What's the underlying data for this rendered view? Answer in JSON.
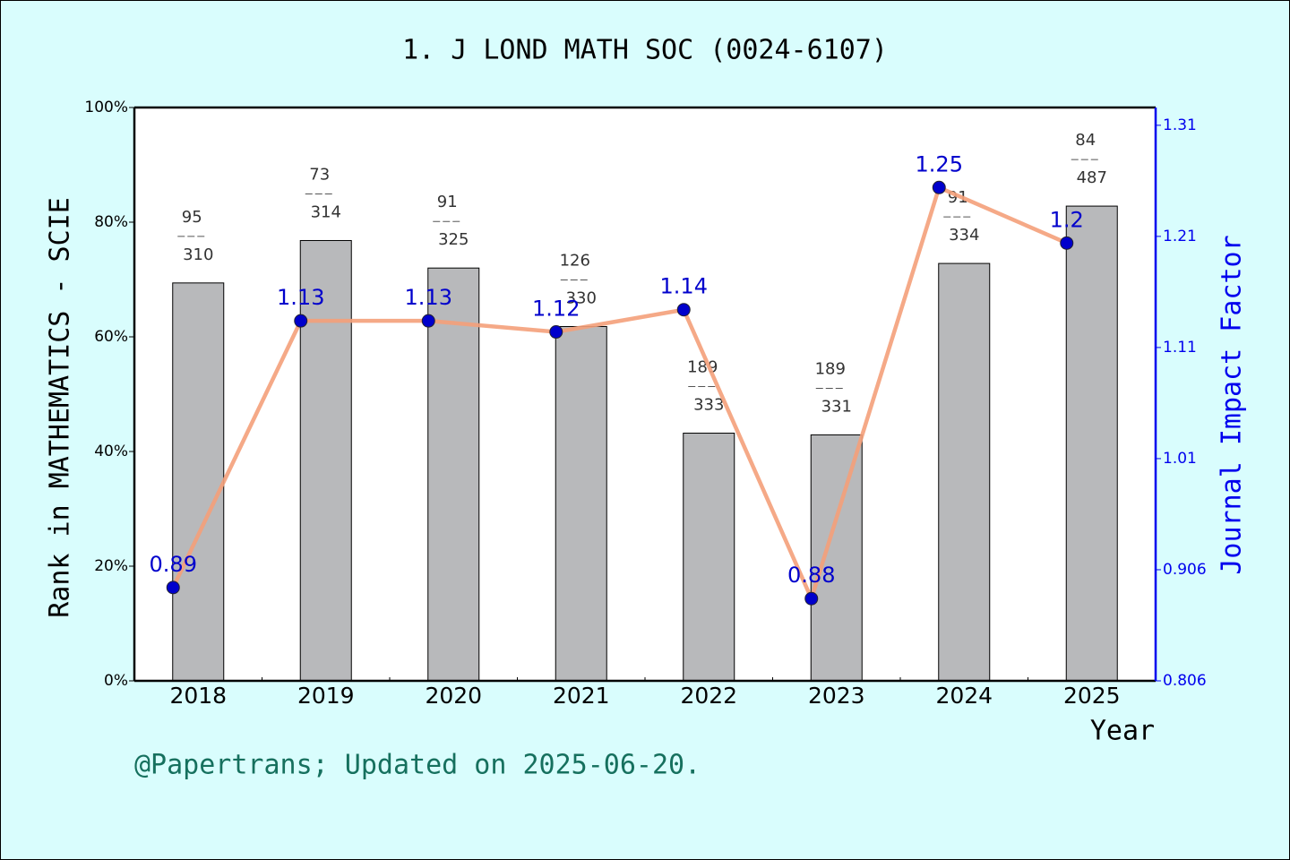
{
  "chart_data": {
    "type": "bar",
    "title": "1. J LOND MATH SOC (0024-6107)",
    "x_label": "Year",
    "y_label": "Rank in MATHEMATICS - SCIE",
    "y2_label": "Journal Impact Factor",
    "footer": "@Papertrans; Updated on 2025-06-20.",
    "categories": [
      "2018",
      "2019",
      "2020",
      "2021",
      "2022",
      "2023",
      "2024",
      "2025"
    ],
    "series": [
      {
        "type": "bar",
        "color": "#b8b9bb",
        "values": [
          69.4,
          76.8,
          72.0,
          61.8,
          43.2,
          42.9,
          72.8,
          82.8
        ],
        "rank": [
          95,
          73,
          91,
          126,
          189,
          189,
          91,
          84
        ],
        "total": [
          310,
          314,
          325,
          330,
          333,
          331,
          334,
          487
        ]
      },
      {
        "type": "line",
        "axis": "y2",
        "color": "#f4a07a",
        "marker_color": "#0000cc",
        "values": [
          0.89,
          1.13,
          1.13,
          1.12,
          1.14,
          0.88,
          1.25,
          1.2
        ]
      }
    ],
    "ylim": [
      0,
      100
    ],
    "yticks": [
      {
        "value": 0,
        "label": "0%"
      },
      {
        "value": 20,
        "label": "20%"
      },
      {
        "value": 40,
        "label": "40%"
      },
      {
        "value": 60,
        "label": "60%"
      },
      {
        "value": 80,
        "label": "80%"
      },
      {
        "value": 100,
        "label": "100%"
      }
    ],
    "y2lim": [
      0.806,
      1.322
    ],
    "y2ticks": [
      0.806,
      0.906,
      {
        "value": 1.006,
        "label": "1.01"
      },
      {
        "value": 1.106,
        "label": "1.11"
      },
      {
        "value": 1.206,
        "label": "1.21"
      },
      {
        "value": 1.306,
        "label": "1.31"
      }
    ]
  }
}
